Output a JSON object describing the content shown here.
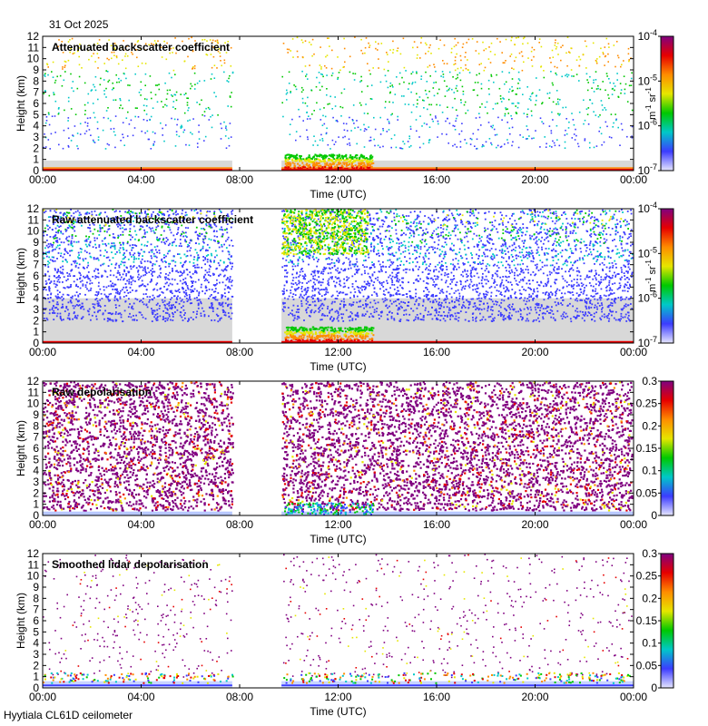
{
  "date": "31 Oct 2025",
  "footer": "Hyytiala CL61D ceilometer",
  "colors": {
    "background_fill": "#d8d8d8",
    "backscatter_colormap": [
      "#e6e6ff",
      "#3c3cff",
      "#00c8c8",
      "#00c800",
      "#e6e600",
      "#ff8c00",
      "#e60000",
      "#800080"
    ],
    "depol_colormap": [
      "#e6e6ff",
      "#3c3cff",
      "#00c8c8",
      "#00c800",
      "#e6e600",
      "#ff8c00",
      "#e60000",
      "#800080"
    ]
  },
  "chart_data": [
    {
      "type": "heatmap",
      "title": "Attenuated backscatter coefficient",
      "xlabel": "Time (UTC)",
      "ylabel": "Height (km)",
      "xticks": [
        "00:00",
        "04:00",
        "08:00",
        "12:00",
        "16:00",
        "20:00",
        "00:00"
      ],
      "xlim_hours": [
        0,
        24
      ],
      "ylim": [
        0,
        12
      ],
      "yticks": [
        "0",
        "1",
        "2",
        "3",
        "4",
        "5",
        "6",
        "7",
        "8",
        "9",
        "10",
        "11",
        "12"
      ],
      "data_gap_hours": [
        7.7,
        9.7
      ],
      "colorbar": {
        "scale": "log",
        "range": [
          1e-07,
          0.0001
        ],
        "ticks": [
          "10-7",
          "10-6",
          "10-5",
          "10-4"
        ],
        "unit": "m-1 sr-1"
      }
    },
    {
      "type": "heatmap",
      "title": "Raw attenuated backscatter coefficient",
      "xlabel": "Time (UTC)",
      "ylabel": "Height (km)",
      "xticks": [
        "00:00",
        "04:00",
        "08:00",
        "12:00",
        "16:00",
        "20:00",
        "00:00"
      ],
      "xlim_hours": [
        0,
        24
      ],
      "ylim": [
        0,
        12
      ],
      "yticks": [
        "0",
        "1",
        "2",
        "3",
        "4",
        "5",
        "6",
        "7",
        "8",
        "9",
        "10",
        "11",
        "12"
      ],
      "data_gap_hours": [
        7.7,
        9.7
      ],
      "colorbar": {
        "scale": "log",
        "range": [
          1e-07,
          0.0001
        ],
        "ticks": [
          "10-7",
          "10-6",
          "10-5",
          "10-4"
        ],
        "unit": "m-1 sr-1"
      }
    },
    {
      "type": "heatmap",
      "title": "Raw depolarisation",
      "xlabel": "Time (UTC)",
      "ylabel": "Height (km)",
      "xticks": [
        "00:00",
        "04:00",
        "08:00",
        "12:00",
        "16:00",
        "20:00",
        "00:00"
      ],
      "xlim_hours": [
        0,
        24
      ],
      "ylim": [
        0,
        12
      ],
      "yticks": [
        "0",
        "1",
        "2",
        "3",
        "4",
        "5",
        "6",
        "7",
        "8",
        "9",
        "10",
        "11",
        "12"
      ],
      "data_gap_hours": [
        7.7,
        9.7
      ],
      "colorbar": {
        "scale": "linear",
        "range": [
          0,
          0.3
        ],
        "ticks": [
          "0",
          "0.05",
          "0.1",
          "0.15",
          "0.2",
          "0.25",
          "0.3"
        ],
        "unit": ""
      }
    },
    {
      "type": "heatmap",
      "title": "Smoothed lidar depolarisation",
      "xlabel": "Time (UTC)",
      "ylabel": "Height (km)",
      "xticks": [
        "00:00",
        "04:00",
        "08:00",
        "12:00",
        "16:00",
        "20:00",
        "00:00"
      ],
      "xlim_hours": [
        0,
        24
      ],
      "ylim": [
        0,
        12
      ],
      "yticks": [
        "0",
        "1",
        "2",
        "3",
        "4",
        "5",
        "6",
        "7",
        "8",
        "9",
        "10",
        "11",
        "12"
      ],
      "data_gap_hours": [
        7.7,
        9.7
      ],
      "colorbar": {
        "scale": "linear",
        "range": [
          0,
          0.3
        ],
        "ticks": [
          "0",
          "0.05",
          "0.1",
          "0.15",
          "0.2",
          "0.25",
          "0.3"
        ],
        "unit": ""
      }
    }
  ]
}
